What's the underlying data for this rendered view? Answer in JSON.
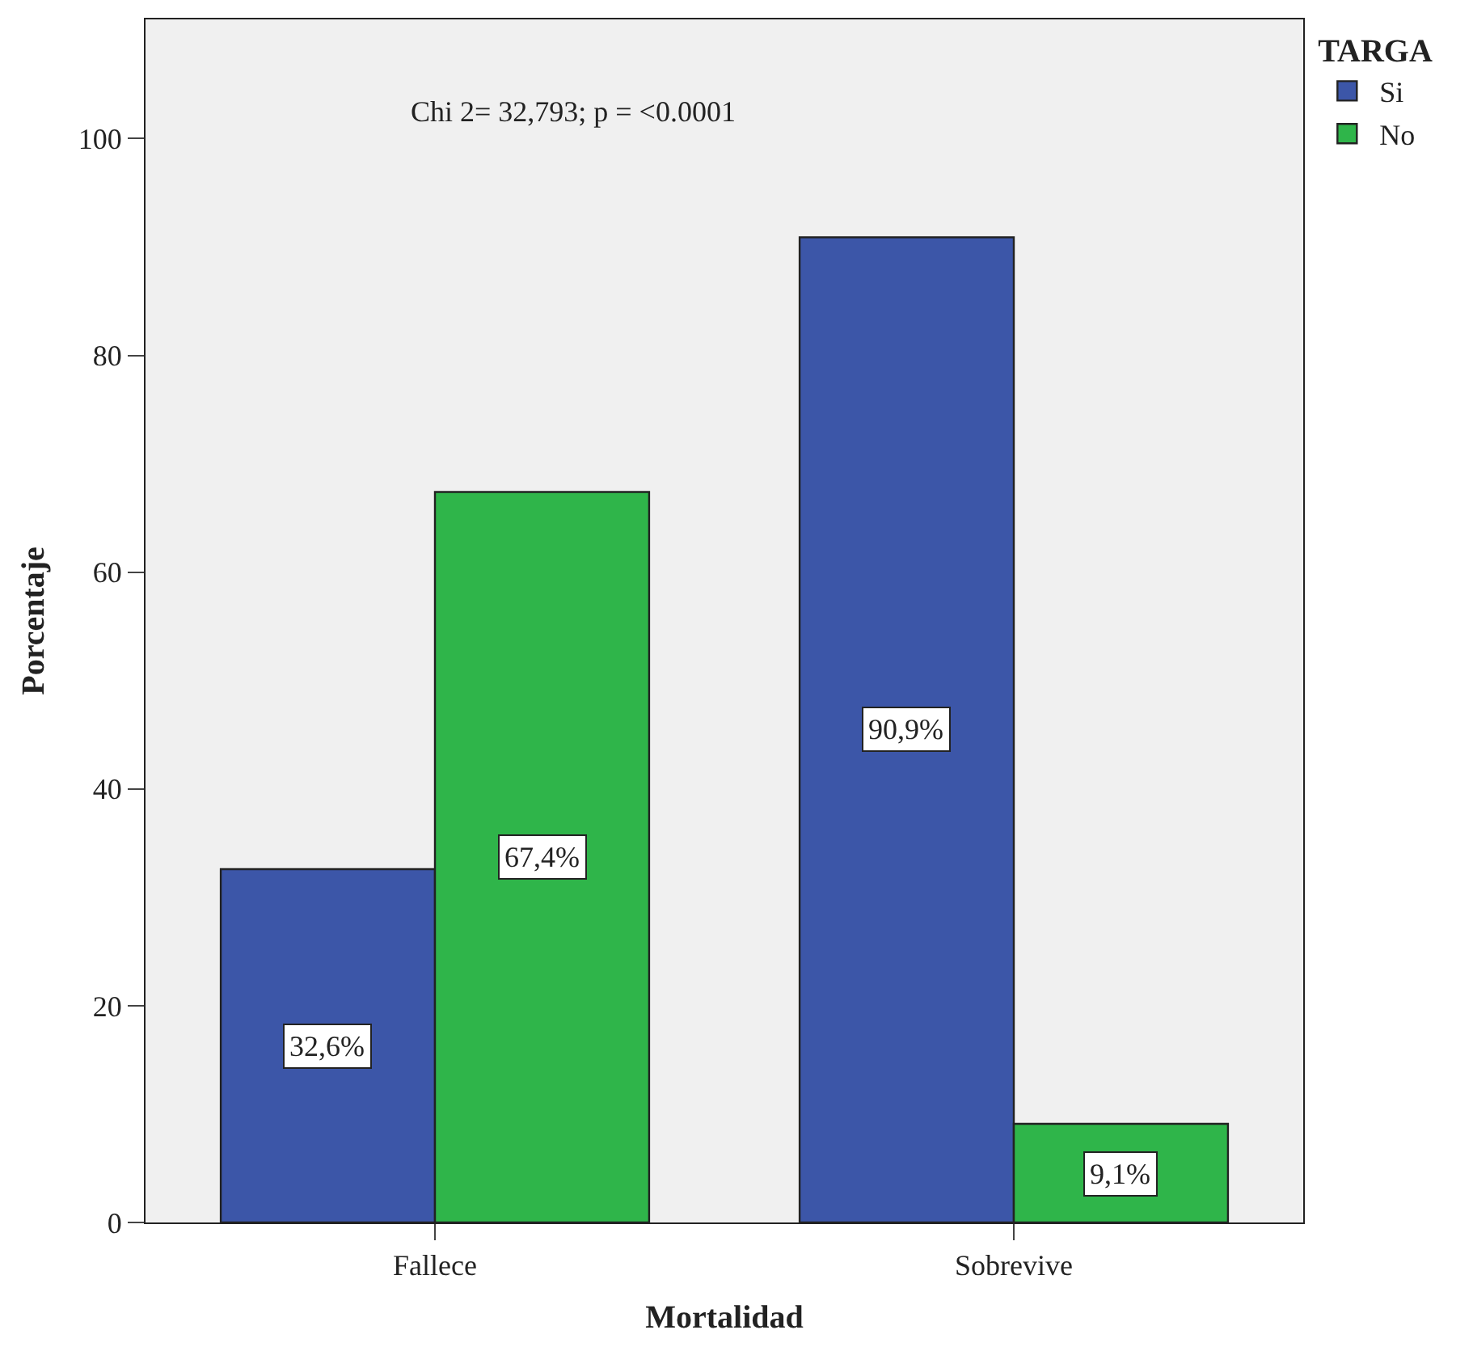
{
  "chart_data": {
    "type": "bar",
    "xlabel": "Mortalidad",
    "ylabel": "Porcentaje",
    "legend_title": "TARGA",
    "categories": [
      "Fallece",
      "Sobrevive"
    ],
    "series": [
      {
        "name": "Si",
        "color": "#3c56a8",
        "values": [
          32.6,
          90.9
        ],
        "value_labels": [
          "32,6%",
          "90,9%"
        ]
      },
      {
        "name": "No",
        "color": "#2fb54a",
        "values": [
          67.4,
          9.1
        ],
        "value_labels": [
          "67,4%",
          "9,1%"
        ]
      }
    ],
    "ylim": [
      0,
      111
    ],
    "yticks": [
      0,
      20,
      40,
      60,
      80,
      100
    ],
    "grid": false,
    "legend": "top right",
    "annotations": [
      "Chi 2= 32,793; p = <0.0001"
    ]
  }
}
